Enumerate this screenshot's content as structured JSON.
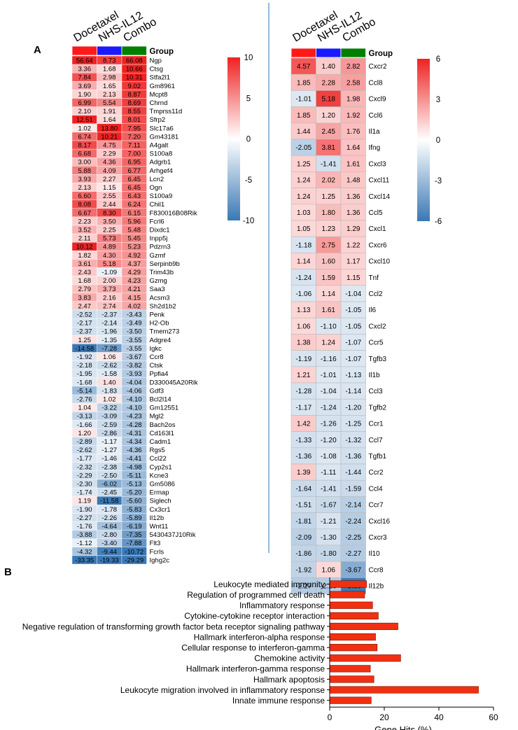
{
  "panel_labels": {
    "a": "A",
    "b": "B"
  },
  "chart_data": [
    {
      "type": "heatmap",
      "panel": "A-left",
      "columns": [
        "Docetaxel",
        "NHS-IL12",
        "Combo"
      ],
      "group_label": "Group",
      "group_colors": [
        "#ff1a1a",
        "#1a1aff",
        "#007f00"
      ],
      "colorbar": {
        "min": -10,
        "max": 10,
        "ticks": [
          "10",
          "5",
          "0",
          "-5",
          "-10"
        ],
        "low_color": "#3a78b5",
        "mid_color": "#ffffff",
        "high_color": "#ef2222"
      },
      "rows": [
        {
          "gene": "Ngp",
          "values": [
            "56.64",
            "8.73",
            "66.08"
          ]
        },
        {
          "gene": "Ctsg",
          "values": [
            "3.36",
            "1.68",
            "10.66"
          ]
        },
        {
          "gene": "Stfa2l1",
          "values": [
            "7.84",
            "2.98",
            "10.31"
          ]
        },
        {
          "gene": "Gm8961",
          "values": [
            "3.69",
            "1.65",
            "9.02"
          ]
        },
        {
          "gene": "Mcpt8",
          "values": [
            "1.90",
            "2.13",
            "8.87"
          ]
        },
        {
          "gene": "Chrnd",
          "values": [
            "6.99",
            "5.54",
            "8.69"
          ]
        },
        {
          "gene": "Tmprss11d",
          "values": [
            "2.10",
            "1.91",
            "8.55"
          ]
        },
        {
          "gene": "Sfrp2",
          "values": [
            "12.51",
            "1.64",
            "8.01"
          ]
        },
        {
          "gene": "Slc17a6",
          "values": [
            "1.02",
            "13.80",
            "7.95"
          ]
        },
        {
          "gene": "Gm43181",
          "values": [
            "6.74",
            "10.21",
            "7.20"
          ]
        },
        {
          "gene": "A4galt",
          "values": [
            "8.17",
            "4.75",
            "7.11"
          ]
        },
        {
          "gene": "S100a8",
          "values": [
            "6.68",
            "2.29",
            "7.00"
          ]
        },
        {
          "gene": "Adgrb1",
          "values": [
            "3.00",
            "4.36",
            "6.95"
          ]
        },
        {
          "gene": "Arhgef4",
          "values": [
            "5.88",
            "4.09",
            "6.77"
          ]
        },
        {
          "gene": "Lcn2",
          "values": [
            "3.93",
            "2.27",
            "6.45"
          ]
        },
        {
          "gene": "Ogn",
          "values": [
            "2.13",
            "1.15",
            "6.45"
          ]
        },
        {
          "gene": "S100a9",
          "values": [
            "6.60",
            "2.55",
            "6.43"
          ]
        },
        {
          "gene": "Chil1",
          "values": [
            "8.08",
            "2.44",
            "6.24"
          ]
        },
        {
          "gene": "F830016B08Rik",
          "values": [
            "6.67",
            "8.30",
            "6.15"
          ]
        },
        {
          "gene": "Fcrl6",
          "values": [
            "2.23",
            "3.50",
            "5.96"
          ]
        },
        {
          "gene": "Dixdc1",
          "values": [
            "3.52",
            "2.25",
            "5.48"
          ]
        },
        {
          "gene": "Inpp5j",
          "values": [
            "2.11",
            "5.73",
            "5.45"
          ]
        },
        {
          "gene": "Pdzrn3",
          "values": [
            "10.12",
            "4.89",
            "5.23"
          ]
        },
        {
          "gene": "Gzmf",
          "values": [
            "1.82",
            "4.30",
            "4.92"
          ]
        },
        {
          "gene": "Serpinb9b",
          "values": [
            "3.61",
            "5.18",
            "4.37"
          ]
        },
        {
          "gene": "Trim43b",
          "values": [
            "2.43",
            "-1.09",
            "4.29"
          ]
        },
        {
          "gene": "Gzmg",
          "values": [
            "1.68",
            "2.00",
            "4.23"
          ]
        },
        {
          "gene": "Saa3",
          "values": [
            "2.79",
            "3.73",
            "4.21"
          ]
        },
        {
          "gene": "Acsm3",
          "values": [
            "3.83",
            "2.16",
            "4.15"
          ]
        },
        {
          "gene": "Sh2d1b2",
          "values": [
            "2.47",
            "2.74",
            "4.02"
          ]
        },
        {
          "gene": "Penk",
          "values": [
            "-2.52",
            "-2.37",
            "-3.43"
          ]
        },
        {
          "gene": "H2-Ob",
          "values": [
            "-2.17",
            "-2.14",
            "-3.49"
          ]
        },
        {
          "gene": "Tmem273",
          "values": [
            "-2.37",
            "-1.96",
            "-3.50"
          ]
        },
        {
          "gene": "Adgre4",
          "values": [
            "1.25",
            "-1.35",
            "-3.55"
          ]
        },
        {
          "gene": "Igkc",
          "values": [
            "-14.58",
            "-7.28",
            "-3.55"
          ]
        },
        {
          "gene": "Ccr8",
          "values": [
            "-1.92",
            "1.06",
            "-3.67"
          ]
        },
        {
          "gene": "Ctsk",
          "values": [
            "-2.18",
            "-2.62",
            "-3.82"
          ]
        },
        {
          "gene": "Ppfia4",
          "values": [
            "-1.95",
            "-1.58",
            "-3.93"
          ]
        },
        {
          "gene": "D330045A20Rik",
          "values": [
            "-1.68",
            "1.40",
            "-4.04"
          ]
        },
        {
          "gene": "Gdf3",
          "values": [
            "-5.14",
            "-1.83",
            "-4.06"
          ]
        },
        {
          "gene": "Bcl2l14",
          "values": [
            "-2.76",
            "1.02",
            "-4.10"
          ]
        },
        {
          "gene": "Gm12551",
          "values": [
            "1.04",
            "-3.22",
            "-4.10"
          ]
        },
        {
          "gene": "Mgl2",
          "values": [
            "-3.13",
            "-3.09",
            "-4.23"
          ]
        },
        {
          "gene": "Bach2os",
          "values": [
            "-1.66",
            "-2.59",
            "-4.28"
          ]
        },
        {
          "gene": "Cd163l1",
          "values": [
            "1.20",
            "-2.86",
            "-4.31"
          ]
        },
        {
          "gene": "Cadm1",
          "values": [
            "-2.89",
            "-1.17",
            "-4.34"
          ]
        },
        {
          "gene": "Rgs5",
          "values": [
            "-2.62",
            "-1.27",
            "-4.36"
          ]
        },
        {
          "gene": "Ccl22",
          "values": [
            "-1.77",
            "-1.46",
            "-4.41"
          ]
        },
        {
          "gene": "Cyp2s1",
          "values": [
            "-2.32",
            "-2.38",
            "-4.98"
          ]
        },
        {
          "gene": "Kcne3",
          "values": [
            "-2.29",
            "-2.50",
            "-5.11"
          ]
        },
        {
          "gene": "Gm5086",
          "values": [
            "-2.30",
            "-6.02",
            "-5.13"
          ]
        },
        {
          "gene": "Ermap",
          "values": [
            "-1.74",
            "-2.45",
            "-5.20"
          ]
        },
        {
          "gene": "Siglech",
          "values": [
            "1.19",
            "-11.58",
            "-5.60"
          ]
        },
        {
          "gene": "Cx3cr1",
          "values": [
            "-1.90",
            "-1.78",
            "-5.83"
          ]
        },
        {
          "gene": "Il12b",
          "values": [
            "-2.27",
            "-2.26",
            "-5.89"
          ]
        },
        {
          "gene": "Wnt11",
          "values": [
            "-1.76",
            "-4.64",
            "-6.19"
          ]
        },
        {
          "gene": "5430437J10Rik",
          "values": [
            "-3.88",
            "-2.80",
            "-7.35"
          ]
        },
        {
          "gene": "Flt3",
          "values": [
            "-1.12",
            "-3.40",
            "-7.88"
          ]
        },
        {
          "gene": "Fcrls",
          "values": [
            "-4.32",
            "-9.44",
            "-10.72"
          ]
        },
        {
          "gene": "Ighg2c",
          "values": [
            "-33.35",
            "-19.33",
            "-29.29"
          ]
        }
      ]
    },
    {
      "type": "heatmap",
      "panel": "A-right",
      "columns": [
        "Docetaxel",
        "NHS-IL12",
        "Combo"
      ],
      "group_label": "Group",
      "group_colors": [
        "#ff1a1a",
        "#1a1aff",
        "#007f00"
      ],
      "colorbar": {
        "min": -6,
        "max": 6,
        "ticks": [
          "6",
          "3",
          "0",
          "-3",
          "-6"
        ],
        "low_color": "#3a78b5",
        "mid_color": "#ffffff",
        "high_color": "#ef2222"
      },
      "rows": [
        {
          "gene": "Cxcr2",
          "values": [
            "4.57",
            "1.40",
            "2.82"
          ]
        },
        {
          "gene": "Ccl8",
          "values": [
            "1.85",
            "2.28",
            "2.58"
          ]
        },
        {
          "gene": "Cxcl9",
          "values": [
            "-1.01",
            "5.18",
            "1.98"
          ]
        },
        {
          "gene": "Ccl6",
          "values": [
            "1.85",
            "1.20",
            "1.92"
          ]
        },
        {
          "gene": "Il1a",
          "values": [
            "1.44",
            "2.45",
            "1.76"
          ]
        },
        {
          "gene": "Ifng",
          "values": [
            "-2.05",
            "3.81",
            "1.64"
          ]
        },
        {
          "gene": "Cxcl3",
          "values": [
            "1.25",
            "-1.41",
            "1.61"
          ]
        },
        {
          "gene": "Cxcl11",
          "values": [
            "1.24",
            "2.02",
            "1.48"
          ]
        },
        {
          "gene": "Cxcl14",
          "values": [
            "1.24",
            "1.25",
            "1.36"
          ]
        },
        {
          "gene": "Ccl5",
          "values": [
            "1.03",
            "1.80",
            "1.36"
          ]
        },
        {
          "gene": "Cxcl1",
          "values": [
            "1.05",
            "1.23",
            "1.29"
          ]
        },
        {
          "gene": "Cxcr6",
          "values": [
            "-1.18",
            "2.75",
            "1.22"
          ]
        },
        {
          "gene": "Cxcl10",
          "values": [
            "1.14",
            "1.60",
            "1.17"
          ]
        },
        {
          "gene": "Tnf",
          "values": [
            "-1.24",
            "1.59",
            "1.15"
          ]
        },
        {
          "gene": "Ccl2",
          "values": [
            "-1.06",
            "1.14",
            "-1.04"
          ]
        },
        {
          "gene": "Il6",
          "values": [
            "1.13",
            "1.61",
            "-1.05"
          ]
        },
        {
          "gene": "Cxcl2",
          "values": [
            "1.06",
            "-1.10",
            "-1.05"
          ]
        },
        {
          "gene": "Ccr5",
          "values": [
            "1.38",
            "1.24",
            "-1.07"
          ]
        },
        {
          "gene": "Tgfb3",
          "values": [
            "-1.19",
            "-1.16",
            "-1.07"
          ]
        },
        {
          "gene": "Il1b",
          "values": [
            "1.21",
            "-1.01",
            "-1.13"
          ]
        },
        {
          "gene": "Ccl3",
          "values": [
            "-1.28",
            "-1.04",
            "-1.14"
          ]
        },
        {
          "gene": "Tgfb2",
          "values": [
            "-1.17",
            "-1.24",
            "-1.20"
          ]
        },
        {
          "gene": "Ccr1",
          "values": [
            "1.42",
            "-1.26",
            "-1.25"
          ]
        },
        {
          "gene": "Ccl7",
          "values": [
            "-1.33",
            "-1.20",
            "-1.32"
          ]
        },
        {
          "gene": "Tgfb1",
          "values": [
            "-1.36",
            "-1.08",
            "-1.36"
          ]
        },
        {
          "gene": "Ccr2",
          "values": [
            "1.39",
            "-1.11",
            "-1.44"
          ]
        },
        {
          "gene": "Ccl4",
          "values": [
            "-1.64",
            "-1.41",
            "-1.59"
          ]
        },
        {
          "gene": "Ccr7",
          "values": [
            "-1.51",
            "-1.67",
            "-2.14"
          ]
        },
        {
          "gene": "Cxcl16",
          "values": [
            "-1.81",
            "-1.21",
            "-2.24"
          ]
        },
        {
          "gene": "Cxcr3",
          "values": [
            "-2.09",
            "-1.30",
            "-2.25"
          ]
        },
        {
          "gene": "Il10",
          "values": [
            "-1.86",
            "-1.80",
            "-2.27"
          ]
        },
        {
          "gene": "Ccr8",
          "values": [
            "-1.92",
            "1.06",
            "-3.67"
          ]
        },
        {
          "gene": "Il12b",
          "values": [
            "-2.27",
            "-2.26",
            "-5.89"
          ]
        }
      ]
    },
    {
      "type": "bar",
      "orientation": "horizontal",
      "panel": "B",
      "bar_color": "#f03010",
      "categories": [
        "Leukocyte mediated immunity",
        "Regulation of programmed cell death",
        "Inflammatory response",
        "Cytokine-cytokine receptor interaction",
        "Negative regulation of transforming growth factor beta receptor signaling pathway",
        "Hallmark interferon-alpha response",
        "Cellular response to interferon-gamma",
        "Chemokine activity",
        "Hallmark interferon-gamma response",
        "Hallmark apoptosis",
        "Leukocyte migration involved in inflammatory response",
        "Innate immune response"
      ],
      "values": [
        13.5,
        12.8,
        15.7,
        17.8,
        25.0,
        16.8,
        17.4,
        26.0,
        14.9,
        16.2,
        54.5,
        15.2
      ],
      "xlabel": "Gene Hits (%)",
      "xlim": [
        0,
        60
      ],
      "xticks": [
        "0",
        "20",
        "40",
        "60"
      ]
    }
  ]
}
